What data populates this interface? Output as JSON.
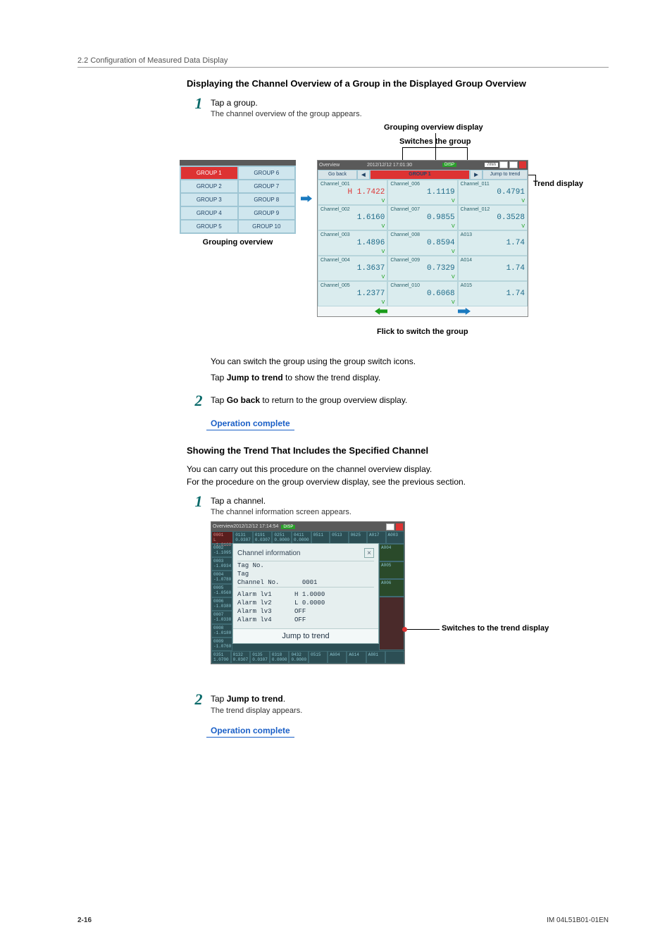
{
  "header": {
    "section": "2.2  Configuration of Measured Data Display"
  },
  "block1": {
    "title": "Displaying the Channel Overview of a Group in the Displayed Group Overview",
    "step1": {
      "num": "1",
      "text": "Tap a group.",
      "sub": "The channel overview of the group appears."
    },
    "callouts": {
      "grouping_display": "Grouping overview display",
      "switches_group": "Switches the group",
      "trend_display": "Trend display",
      "grouping_overview": "Grouping overview",
      "flick": "Flick to switch the group"
    },
    "grouplist": {
      "head": "Overview        2012/12/12 16:59:15",
      "items": [
        "GROUP 1",
        "GROUP 6",
        "GROUP 2",
        "GROUP 7",
        "GROUP 3",
        "GROUP 8",
        "GROUP 4",
        "GROUP 9",
        "GROUP 5",
        "GROUP 10"
      ]
    },
    "chanview": {
      "ts": "2012/12/12 17:01:30",
      "env": "7min",
      "disp": "DISP",
      "goback": "Go back",
      "group": "GROUP 1",
      "jump": "Jump to trend",
      "cells": [
        {
          "name": "Channel_001",
          "val": "H 1.7422",
          "v": "V",
          "h": true
        },
        {
          "name": "Channel_006",
          "val": "1.1119",
          "v": "V"
        },
        {
          "name": "Channel_011",
          "val": "0.4791",
          "v": "V"
        },
        {
          "name": "Channel_002",
          "val": "1.6160",
          "v": "V"
        },
        {
          "name": "Channel_007",
          "val": "0.9855",
          "v": "V"
        },
        {
          "name": "Channel_012",
          "val": "0.3528",
          "v": "V"
        },
        {
          "name": "Channel_003",
          "val": "1.4896",
          "v": "V"
        },
        {
          "name": "Channel_008",
          "val": "0.8594",
          "v": "V"
        },
        {
          "name": "A013",
          "val": "1.74",
          "v": ""
        },
        {
          "name": "Channel_004",
          "val": "1.3637",
          "v": "V"
        },
        {
          "name": "Channel_009",
          "val": "0.7329",
          "v": "V"
        },
        {
          "name": "A014",
          "val": "1.74",
          "v": ""
        },
        {
          "name": "Channel_005",
          "val": "1.2377",
          "v": "V"
        },
        {
          "name": "Channel_010",
          "val": "0.6068",
          "v": "V"
        },
        {
          "name": "A015",
          "val": "1.74",
          "v": ""
        }
      ]
    },
    "para1": "You can switch the group using the group switch icons.",
    "para2_pre": "Tap ",
    "para2_b": "Jump to trend",
    "para2_post": " to show the trend display.",
    "step2": {
      "num": "2",
      "pre": "Tap ",
      "b": "Go back",
      "post": " to return to the group overview display."
    },
    "op": "Operation complete"
  },
  "block2": {
    "title": "Showing the Trend That Includes the Specified Channel",
    "p1": "You can carry out this procedure on the channel overview display.",
    "p2": "For the procedure on the group overview display, see the previous section.",
    "step1": {
      "num": "1",
      "text": "Tap a channel.",
      "sub": "The channel information screen appears."
    },
    "callout": "Switches to the trend display",
    "shot": {
      "overview": "Overview",
      "ts": "2012/12/12 17:14:54",
      "disp": "DISP",
      "pop": {
        "title": "Channel information",
        "tag_no": "Tag No.",
        "tag": "Tag",
        "chno_l": "Channel No.",
        "chno_v": "0001",
        "alarms": [
          {
            "l": "Alarm lv1",
            "v": "H 1.0000"
          },
          {
            "l": "Alarm lv2",
            "v": "L 0.0000"
          },
          {
            "l": "Alarm lv3",
            "v": "OFF"
          },
          {
            "l": "Alarm lv4",
            "v": "OFF"
          }
        ],
        "jump": "Jump to trend"
      }
    },
    "step2": {
      "num": "2",
      "pre": "Tap ",
      "b": "Jump to trend",
      "post": ".",
      "sub": "The trend display appears."
    },
    "op": "Operation complete"
  },
  "footer": {
    "page": "2-16",
    "doc": "IM 04L51B01-01EN"
  }
}
